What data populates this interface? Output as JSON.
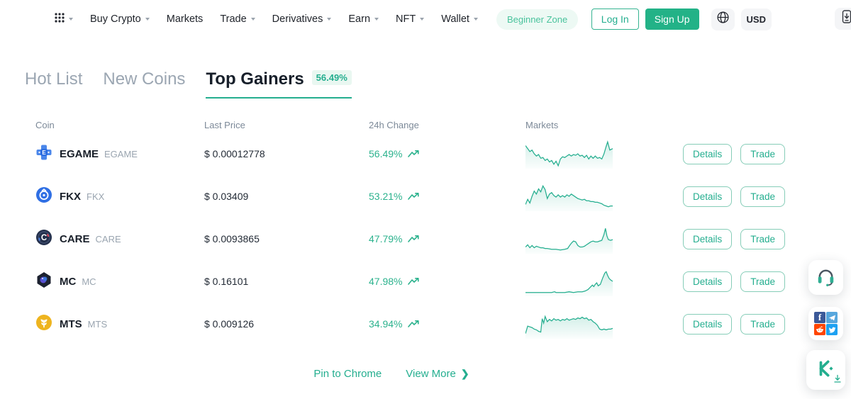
{
  "nav": {
    "items": [
      {
        "label": "Buy Crypto",
        "dropdown": true
      },
      {
        "label": "Markets",
        "dropdown": false
      },
      {
        "label": "Trade",
        "dropdown": true
      },
      {
        "label": "Derivatives",
        "dropdown": true
      },
      {
        "label": "Earn",
        "dropdown": true
      },
      {
        "label": "NFT",
        "dropdown": true
      },
      {
        "label": "Wallet",
        "dropdown": true
      }
    ],
    "beginner_zone_label": "Beginner Zone",
    "login_label": "Log In",
    "signup_label": "Sign Up",
    "currency_label": "USD"
  },
  "tabs": [
    {
      "label": "Hot List",
      "active": false
    },
    {
      "label": "New Coins",
      "active": false
    },
    {
      "label": "Top Gainers",
      "active": true,
      "badge": "56.49%"
    }
  ],
  "table": {
    "headers": {
      "coin": "Coin",
      "last_price": "Last Price",
      "change": "24h Change",
      "markets": "Markets"
    },
    "details_label": "Details",
    "trade_label": "Trade",
    "rows": [
      {
        "symbol": "EGAME",
        "name": "EGAME",
        "price": "$ 0.00012778",
        "change": "56.49%",
        "icon_color": "#2f6fe0",
        "sparkline": [
          [
            0,
            9
          ],
          [
            3,
            13
          ],
          [
            6,
            17
          ],
          [
            9,
            15
          ],
          [
            12,
            20
          ],
          [
            15,
            23
          ],
          [
            18,
            21
          ],
          [
            21,
            26
          ],
          [
            24,
            25
          ],
          [
            27,
            29
          ],
          [
            30,
            27
          ],
          [
            33,
            31
          ],
          [
            36,
            29
          ],
          [
            39,
            34
          ],
          [
            42,
            30
          ],
          [
            45,
            36
          ],
          [
            48,
            27
          ],
          [
            51,
            24
          ],
          [
            54,
            25
          ],
          [
            57,
            23
          ],
          [
            60,
            21
          ],
          [
            63,
            23
          ],
          [
            66,
            21
          ],
          [
            69,
            22
          ],
          [
            72,
            20
          ],
          [
            75,
            23
          ],
          [
            78,
            22
          ],
          [
            81,
            25
          ],
          [
            84,
            22
          ],
          [
            87,
            27
          ],
          [
            90,
            23
          ],
          [
            93,
            26
          ],
          [
            96,
            23
          ],
          [
            99,
            26
          ],
          [
            102,
            25
          ],
          [
            105,
            27
          ],
          [
            108,
            20
          ],
          [
            111,
            10
          ],
          [
            113,
            4
          ],
          [
            116,
            15
          ],
          [
            120,
            13
          ]
        ]
      },
      {
        "symbol": "FKX",
        "name": "FKX",
        "price": "$ 0.03409",
        "change": "53.21%",
        "icon_color": "#2f6fe4",
        "sparkline": [
          [
            0,
            31
          ],
          [
            3,
            24
          ],
          [
            6,
            29
          ],
          [
            9,
            20
          ],
          [
            12,
            13
          ],
          [
            15,
            17
          ],
          [
            18,
            10
          ],
          [
            21,
            14
          ],
          [
            24,
            6
          ],
          [
            27,
            11
          ],
          [
            30,
            23
          ],
          [
            33,
            17
          ],
          [
            36,
            15
          ],
          [
            39,
            19
          ],
          [
            42,
            21
          ],
          [
            45,
            18
          ],
          [
            48,
            21
          ],
          [
            51,
            19
          ],
          [
            54,
            21
          ],
          [
            57,
            18
          ],
          [
            60,
            20
          ],
          [
            63,
            17
          ],
          [
            66,
            19
          ],
          [
            69,
            21
          ],
          [
            72,
            23
          ],
          [
            75,
            24
          ],
          [
            78,
            25
          ],
          [
            81,
            24
          ],
          [
            84,
            26
          ],
          [
            87,
            26
          ],
          [
            90,
            27
          ],
          [
            93,
            27
          ],
          [
            96,
            28
          ],
          [
            99,
            28
          ],
          [
            102,
            29
          ],
          [
            105,
            30
          ],
          [
            108,
            32
          ],
          [
            111,
            33
          ],
          [
            114,
            34
          ],
          [
            117,
            33
          ],
          [
            120,
            33
          ]
        ]
      },
      {
        "symbol": "CARE",
        "name": "CARE",
        "price": "$ 0.0093865",
        "change": "47.79%",
        "icon_color": "#232f4b",
        "sparkline": [
          [
            0,
            31
          ],
          [
            3,
            28
          ],
          [
            6,
            32
          ],
          [
            9,
            29
          ],
          [
            12,
            32
          ],
          [
            15,
            30
          ],
          [
            18,
            31
          ],
          [
            21,
            32
          ],
          [
            24,
            32
          ],
          [
            27,
            33
          ],
          [
            30,
            33
          ],
          [
            36,
            34
          ],
          [
            42,
            34
          ],
          [
            48,
            35
          ],
          [
            54,
            34
          ],
          [
            58,
            33
          ],
          [
            60,
            30
          ],
          [
            63,
            26
          ],
          [
            66,
            23
          ],
          [
            69,
            24
          ],
          [
            72,
            29
          ],
          [
            75,
            31
          ],
          [
            78,
            31
          ],
          [
            81,
            30
          ],
          [
            84,
            28
          ],
          [
            87,
            26
          ],
          [
            90,
            24
          ],
          [
            93,
            23
          ],
          [
            96,
            24
          ],
          [
            99,
            24
          ],
          [
            102,
            23
          ],
          [
            105,
            22
          ],
          [
            108,
            14
          ],
          [
            110,
            6
          ],
          [
            112,
            16
          ],
          [
            114,
            21
          ],
          [
            117,
            22
          ],
          [
            120,
            21
          ]
        ]
      },
      {
        "symbol": "MC",
        "name": "MC",
        "price": "$ 0.16101",
        "change": "47.98%",
        "icon_color": "#1c2230",
        "sparkline": [
          [
            0,
            35
          ],
          [
            6,
            35
          ],
          [
            12,
            35
          ],
          [
            18,
            35
          ],
          [
            24,
            35
          ],
          [
            30,
            35
          ],
          [
            36,
            35
          ],
          [
            40,
            34
          ],
          [
            42,
            35
          ],
          [
            48,
            35
          ],
          [
            54,
            35
          ],
          [
            60,
            34
          ],
          [
            66,
            35
          ],
          [
            72,
            34
          ],
          [
            78,
            34
          ],
          [
            82,
            33
          ],
          [
            86,
            31
          ],
          [
            89,
            28
          ],
          [
            92,
            25
          ],
          [
            94,
            27
          ],
          [
            96,
            24
          ],
          [
            98,
            22
          ],
          [
            100,
            26
          ],
          [
            103,
            24
          ],
          [
            106,
            16
          ],
          [
            109,
            9
          ],
          [
            111,
            7
          ],
          [
            113,
            12
          ],
          [
            115,
            16
          ],
          [
            117,
            18
          ],
          [
            120,
            20
          ]
        ]
      },
      {
        "symbol": "MTS",
        "name": "MTS",
        "price": "$ 0.009126",
        "change": "34.94%",
        "icon_color": "#eeb41f",
        "sparkline": [
          [
            0,
            33
          ],
          [
            3,
            23
          ],
          [
            6,
            24
          ],
          [
            9,
            25
          ],
          [
            12,
            27
          ],
          [
            15,
            28
          ],
          [
            18,
            30
          ],
          [
            21,
            31
          ],
          [
            23,
            13
          ],
          [
            25,
            19
          ],
          [
            27,
            10
          ],
          [
            30,
            17
          ],
          [
            33,
            14
          ],
          [
            36,
            16
          ],
          [
            39,
            13
          ],
          [
            42,
            15
          ],
          [
            45,
            14
          ],
          [
            48,
            16
          ],
          [
            51,
            14
          ],
          [
            54,
            15
          ],
          [
            57,
            13
          ],
          [
            60,
            15
          ],
          [
            63,
            14
          ],
          [
            66,
            13
          ],
          [
            69,
            14
          ],
          [
            72,
            12
          ],
          [
            75,
            13
          ],
          [
            78,
            11
          ],
          [
            81,
            13
          ],
          [
            84,
            12
          ],
          [
            87,
            15
          ],
          [
            90,
            14
          ],
          [
            93,
            17
          ],
          [
            96,
            19
          ],
          [
            99,
            22
          ],
          [
            102,
            27
          ],
          [
            105,
            28
          ],
          [
            108,
            27
          ],
          [
            111,
            28
          ],
          [
            114,
            27
          ],
          [
            117,
            27
          ],
          [
            120,
            26
          ]
        ]
      }
    ]
  },
  "footer": {
    "pin_label": "Pin to Chrome",
    "view_more_label": "View More",
    "chevron": "❯"
  },
  "icons": {
    "app-launcher": "3x3-dot-grid",
    "caret-down": "triangle-down",
    "globe": "globe-outline",
    "app-download": "phone-with-down-arrow",
    "trend-up": "zigzag-arrow-up-right",
    "support-headset": "headset",
    "social": [
      "facebook",
      "telegram",
      "reddit",
      "twitter"
    ],
    "kucoin-logo": "stylized-K-with-diamond",
    "download-arrow": "down-arrow-underline"
  },
  "colors": {
    "accent": "#24ae8f",
    "accent_light_bg": "#e9f7f1",
    "positive": "#2bb28d",
    "signup_bg": "#23b287"
  }
}
